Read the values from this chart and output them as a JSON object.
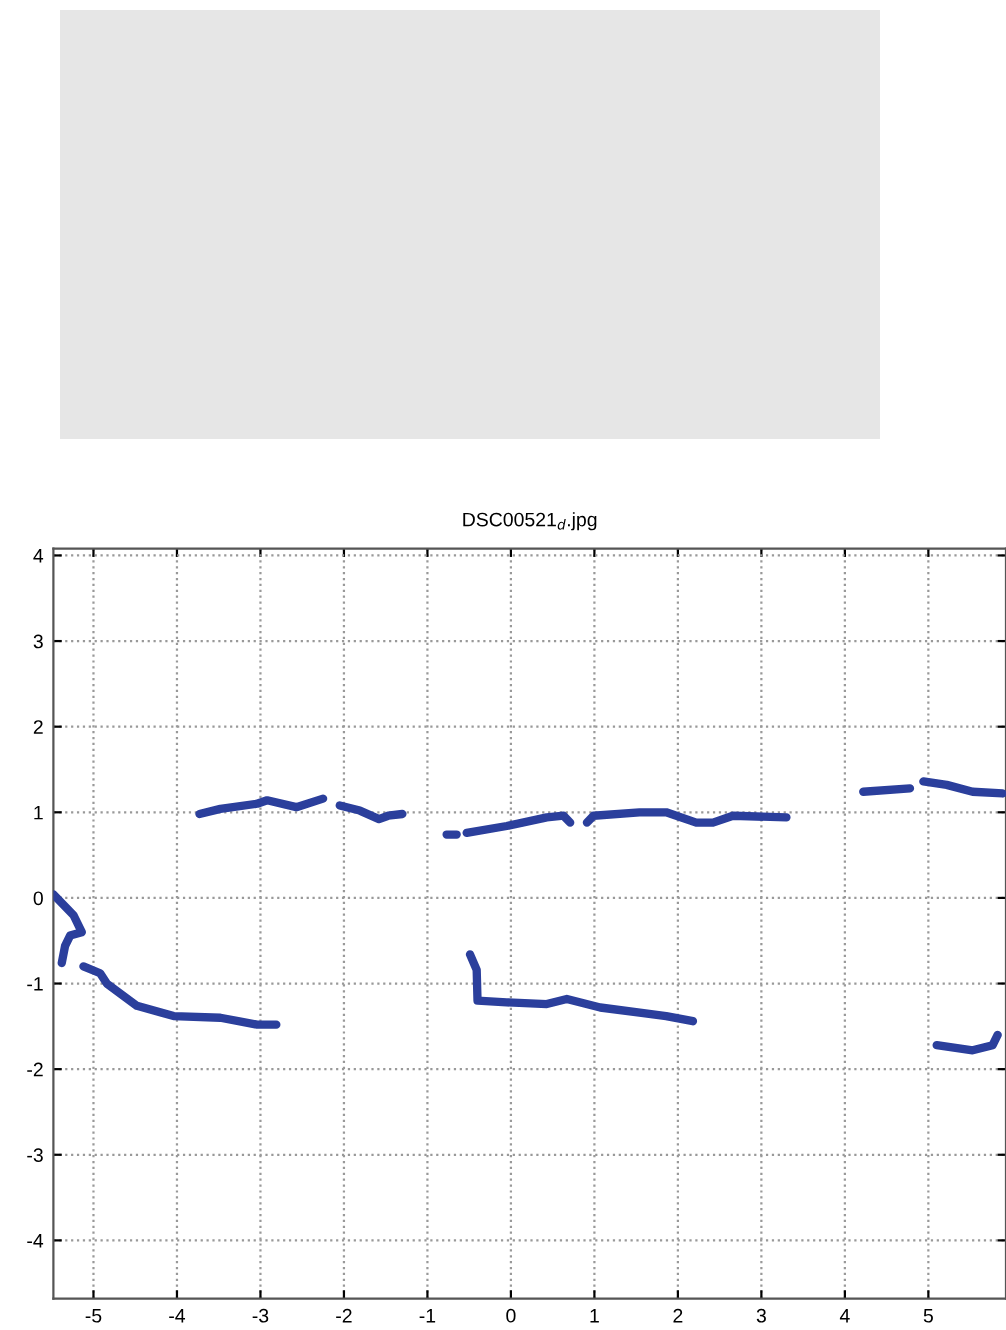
{
  "chart_data": {
    "type": "line",
    "title": "DSC00521$_{d}$.jpg",
    "xlim": [
      -5.48,
      5.93
    ],
    "ylim": [
      -4.68,
      4.08
    ],
    "xticks": [
      -5,
      -4,
      -3,
      -2,
      -1,
      0,
      1,
      2,
      3,
      4,
      5
    ],
    "yticks": [
      -4,
      -3,
      -2,
      -1,
      0,
      1,
      2,
      3,
      4
    ],
    "grid": true,
    "marker": "none",
    "line_style": "solid",
    "series": [
      {
        "color": "#2b3f9c",
        "x": [
          -5.48,
          -5.24,
          -5.14,
          -5.28,
          -5.34,
          -5.38,
          -5.25,
          -5.12,
          -4.92,
          -4.84,
          -4.48,
          -4.04,
          -3.48,
          -3.04,
          -2.81,
          -3.2,
          -3.73,
          -3.48,
          -3.04,
          -2.92,
          -2.57,
          -2.25,
          -2.15,
          -2.05,
          -1.81,
          -1.58,
          -1.47,
          -1.3,
          -1.0,
          -0.77,
          -0.65,
          -0.6,
          -0.53,
          -0.05,
          0.43,
          0.63,
          0.71,
          0.8,
          0.91,
          0.99,
          1.54,
          1.86,
          2.22,
          2.42,
          2.66,
          3.3,
          3.8,
          4.22,
          4.78,
          4.85,
          4.94,
          5.22,
          5.53,
          5.89,
          5.0,
          -0.49,
          -0.41,
          -0.4,
          -0.05,
          0.43,
          0.67,
          1.07,
          1.86,
          2.18,
          4.0,
          5.1,
          5.53,
          5.77,
          5.83
        ],
        "values": [
          0.04,
          -0.2,
          -0.4,
          -0.44,
          -0.56,
          -0.76,
          null,
          -0.8,
          -0.88,
          -1.0,
          -1.26,
          -1.38,
          -1.4,
          -1.48,
          -1.48,
          null,
          0.98,
          1.04,
          1.1,
          1.14,
          1.06,
          1.16,
          null,
          1.08,
          1.02,
          0.92,
          0.96,
          0.98,
          null,
          0.74,
          0.74,
          null,
          0.76,
          0.84,
          0.94,
          0.96,
          0.88,
          null,
          0.88,
          0.96,
          1.0,
          1.0,
          0.88,
          0.88,
          0.96,
          0.94,
          null,
          1.24,
          1.28,
          null,
          1.36,
          1.32,
          1.24,
          1.22,
          null,
          -0.66,
          -0.84,
          -1.2,
          -1.22,
          -1.24,
          -1.18,
          -1.28,
          -1.38,
          -1.44,
          null,
          -1.72,
          -1.78,
          -1.72,
          -1.6
        ]
      }
    ]
  }
}
